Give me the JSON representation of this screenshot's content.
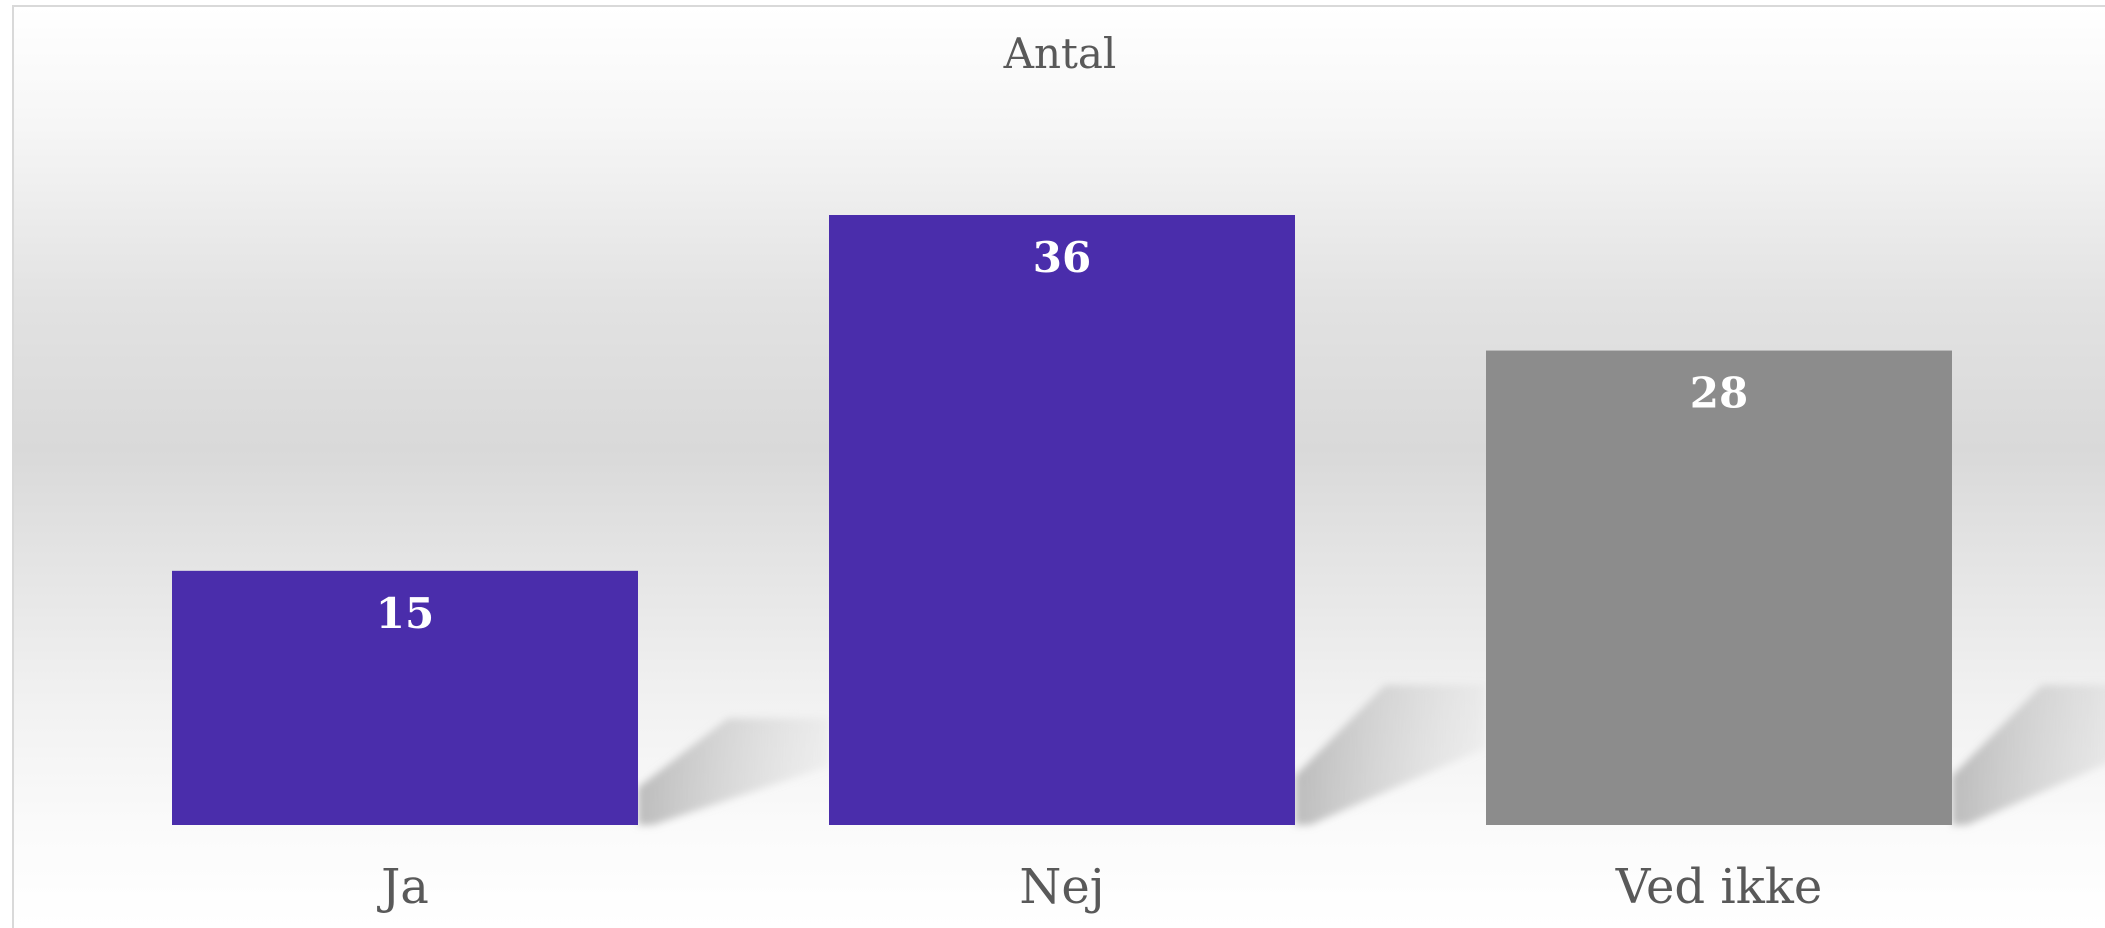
{
  "chart_data": {
    "type": "bar",
    "title": "Antal",
    "categories": [
      "Ja",
      "Nej",
      "Ved ikke"
    ],
    "values": [
      15,
      36,
      28
    ],
    "colors": [
      "#4a2dab",
      "#4a2dab",
      "#8c8c8c"
    ],
    "data_labels": [
      "15",
      "36",
      "28"
    ],
    "ylim": [
      0,
      36
    ],
    "grid": false,
    "legend": "none",
    "title_color": "#595959",
    "label_color": "#595959",
    "data_label_color": "#ffffff"
  }
}
